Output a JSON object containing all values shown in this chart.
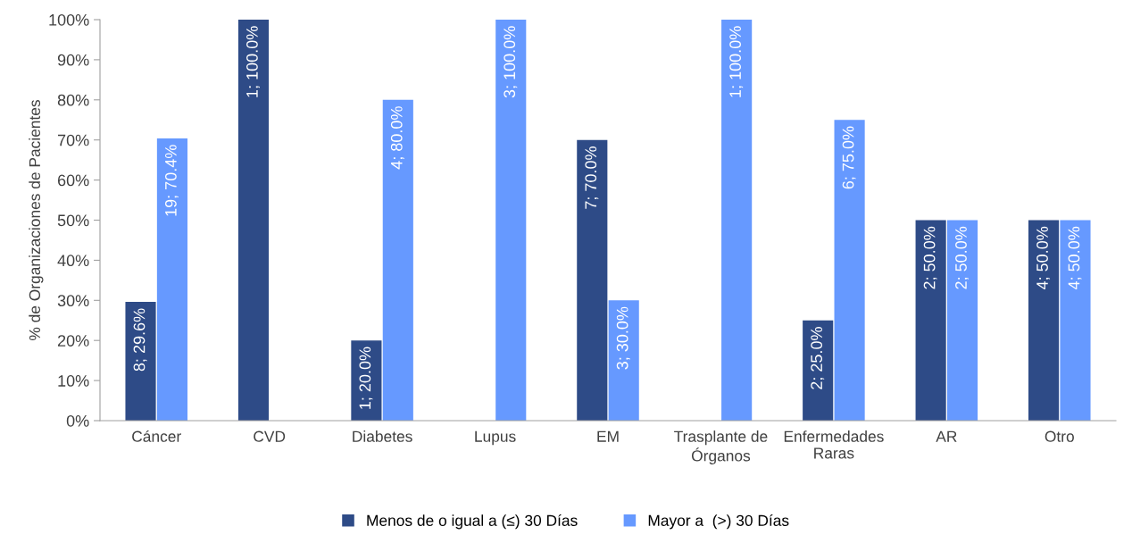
{
  "chart_data": {
    "type": "bar",
    "ylabel": "% de Organizaciones de Pacientes",
    "categories": [
      "Cáncer",
      "CVD",
      "Diabetes",
      "Lupus",
      "EM",
      "Trasplante de Órganos",
      "Enfermedades Raras",
      "AR",
      "Otro"
    ],
    "series": [
      {
        "name": "Menos de o igual a (≤) 30 Días",
        "color": "#2e4b87",
        "values": [
          29.6,
          100,
          20,
          null,
          70,
          null,
          25,
          50,
          50
        ],
        "value_labels": [
          "8; 29.6%",
          "1; 100.0%",
          "1; 20.0%",
          null,
          "7; 70.0%",
          null,
          "2; 25.0%",
          "2; 50.0%",
          "4; 50.0%"
        ]
      },
      {
        "name": "Mayor a  (>) 30 Días",
        "color": "#6699ff",
        "values": [
          70.4,
          null,
          80,
          100,
          30,
          100,
          75,
          50,
          50
        ],
        "value_labels": [
          "19; 70.4%",
          null,
          "4; 80.0%",
          "3; 100.0%",
          "3; 30.0%",
          "1; 100.0%",
          "6; 75.0%",
          "2; 50.0%",
          "4; 50.0%"
        ]
      }
    ],
    "ylim": [
      0,
      100
    ],
    "yticks": [
      {
        "value": 0,
        "label": "0%"
      },
      {
        "value": 10,
        "label": "10%"
      },
      {
        "value": 20,
        "label": "20%"
      },
      {
        "value": 30,
        "label": "30%"
      },
      {
        "value": 40,
        "label": "40%"
      },
      {
        "value": 50,
        "label": "50%"
      },
      {
        "value": 60,
        "label": "60%"
      },
      {
        "value": 70,
        "label": "70%"
      },
      {
        "value": 80,
        "label": "80%"
      },
      {
        "value": 90,
        "label": "90%"
      },
      {
        "value": 100,
        "label": "100%"
      }
    ],
    "grid": false,
    "legend": "bottom"
  }
}
